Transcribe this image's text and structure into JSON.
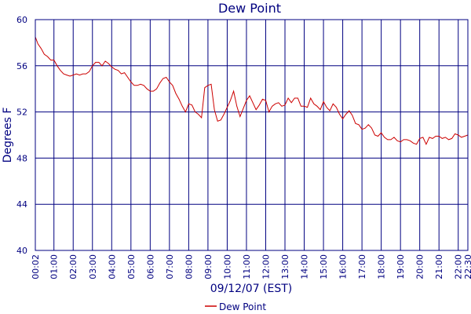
{
  "chart_data": {
    "type": "line",
    "title": "Dew Point",
    "xlabel": "09/12/07 (EST)",
    "ylabel": "Degrees F",
    "ylim": [
      40,
      60
    ],
    "y_ticks": [
      "40",
      "44",
      "48",
      "52",
      "56",
      "60"
    ],
    "x_ticks": [
      "00:02",
      "01:00",
      "02:00",
      "03:00",
      "04:00",
      "05:00",
      "06:00",
      "07:00",
      "08:00",
      "09:00",
      "10:00",
      "11:00",
      "12:00",
      "13:00",
      "14:00",
      "15:00",
      "16:00",
      "17:00",
      "18:00",
      "19:00",
      "20:00",
      "21:00",
      "22:00",
      "22:30"
    ],
    "grid": true,
    "legend_position": "bottom",
    "colors": {
      "series": "#cc0000",
      "grid": "#000080",
      "text": "#000080"
    },
    "series": [
      {
        "name": "Dew Point",
        "x": [
          "00:02",
          "00:10",
          "00:20",
          "00:30",
          "00:40",
          "00:50",
          "01:00",
          "01:10",
          "01:20",
          "01:30",
          "01:40",
          "01:50",
          "02:00",
          "02:10",
          "02:20",
          "02:30",
          "02:40",
          "02:50",
          "03:00",
          "03:10",
          "03:20",
          "03:30",
          "03:40",
          "03:50",
          "04:00",
          "04:10",
          "04:20",
          "04:30",
          "04:40",
          "04:50",
          "05:00",
          "05:10",
          "05:20",
          "05:30",
          "05:40",
          "05:50",
          "06:00",
          "06:10",
          "06:20",
          "06:30",
          "06:40",
          "06:50",
          "07:00",
          "07:10",
          "07:20",
          "07:30",
          "07:40",
          "07:50",
          "08:00",
          "08:10",
          "08:20",
          "08:30",
          "08:40",
          "08:50",
          "09:00",
          "09:10",
          "09:20",
          "09:30",
          "09:40",
          "09:50",
          "10:00",
          "10:10",
          "10:20",
          "10:30",
          "10:40",
          "10:50",
          "11:00",
          "11:10",
          "11:20",
          "11:30",
          "11:40",
          "11:50",
          "12:00",
          "12:10",
          "12:20",
          "12:30",
          "12:40",
          "12:50",
          "13:00",
          "13:10",
          "13:20",
          "13:30",
          "13:40",
          "13:50",
          "14:00",
          "14:10",
          "14:20",
          "14:30",
          "14:40",
          "14:50",
          "15:00",
          "15:10",
          "15:20",
          "15:30",
          "15:40",
          "15:50",
          "16:00",
          "16:10",
          "16:20",
          "16:30",
          "16:40",
          "16:50",
          "17:00",
          "17:10",
          "17:20",
          "17:30",
          "17:40",
          "17:50",
          "18:00",
          "18:10",
          "18:20",
          "18:30",
          "18:40",
          "18:50",
          "19:00",
          "19:10",
          "19:20",
          "19:30",
          "19:40",
          "19:50",
          "20:00",
          "20:10",
          "20:20",
          "20:30",
          "20:40",
          "20:50",
          "21:00",
          "21:10",
          "21:20",
          "21:30",
          "21:40",
          "21:50",
          "22:00",
          "22:10",
          "22:20",
          "22:30"
        ],
        "values": [
          58.5,
          57.9,
          57.5,
          57.0,
          56.8,
          56.5,
          56.5,
          56.0,
          55.6,
          55.3,
          55.2,
          55.1,
          55.2,
          55.3,
          55.2,
          55.3,
          55.3,
          55.5,
          56.0,
          56.3,
          56.3,
          56.0,
          56.4,
          56.2,
          55.9,
          55.7,
          55.6,
          55.3,
          55.4,
          55.0,
          54.6,
          54.3,
          54.3,
          54.4,
          54.3,
          54.0,
          53.8,
          53.8,
          54.0,
          54.5,
          54.9,
          55.0,
          54.6,
          54.3,
          53.6,
          53.1,
          52.5,
          52.0,
          52.7,
          52.6,
          52.0,
          51.8,
          51.5,
          54.1,
          54.3,
          54.4,
          52.2,
          51.2,
          51.3,
          51.8,
          52.4,
          53.0,
          53.8,
          52.5,
          51.6,
          52.3,
          53.0,
          53.4,
          52.8,
          52.2,
          52.6,
          53.1,
          53.0,
          52.0,
          52.5,
          52.7,
          52.8,
          52.5,
          52.6,
          53.2,
          52.8,
          53.2,
          53.2,
          52.5,
          52.5,
          52.4,
          53.2,
          52.7,
          52.5,
          52.2,
          52.9,
          52.4,
          52.1,
          52.7,
          52.4,
          51.8,
          51.4,
          51.8,
          52.1,
          51.7,
          51.0,
          50.9,
          50.5,
          50.6,
          50.9,
          50.6,
          50.0,
          49.9,
          50.2,
          49.8,
          49.6,
          49.6,
          49.8,
          49.5,
          49.4,
          49.6,
          49.6,
          49.5,
          49.3,
          49.2,
          49.7,
          49.8,
          49.2,
          49.8,
          49.7,
          49.9,
          49.9,
          49.7,
          49.8,
          49.6,
          49.7,
          50.1,
          50.0,
          49.8,
          49.9,
          50.0
        ]
      }
    ]
  }
}
